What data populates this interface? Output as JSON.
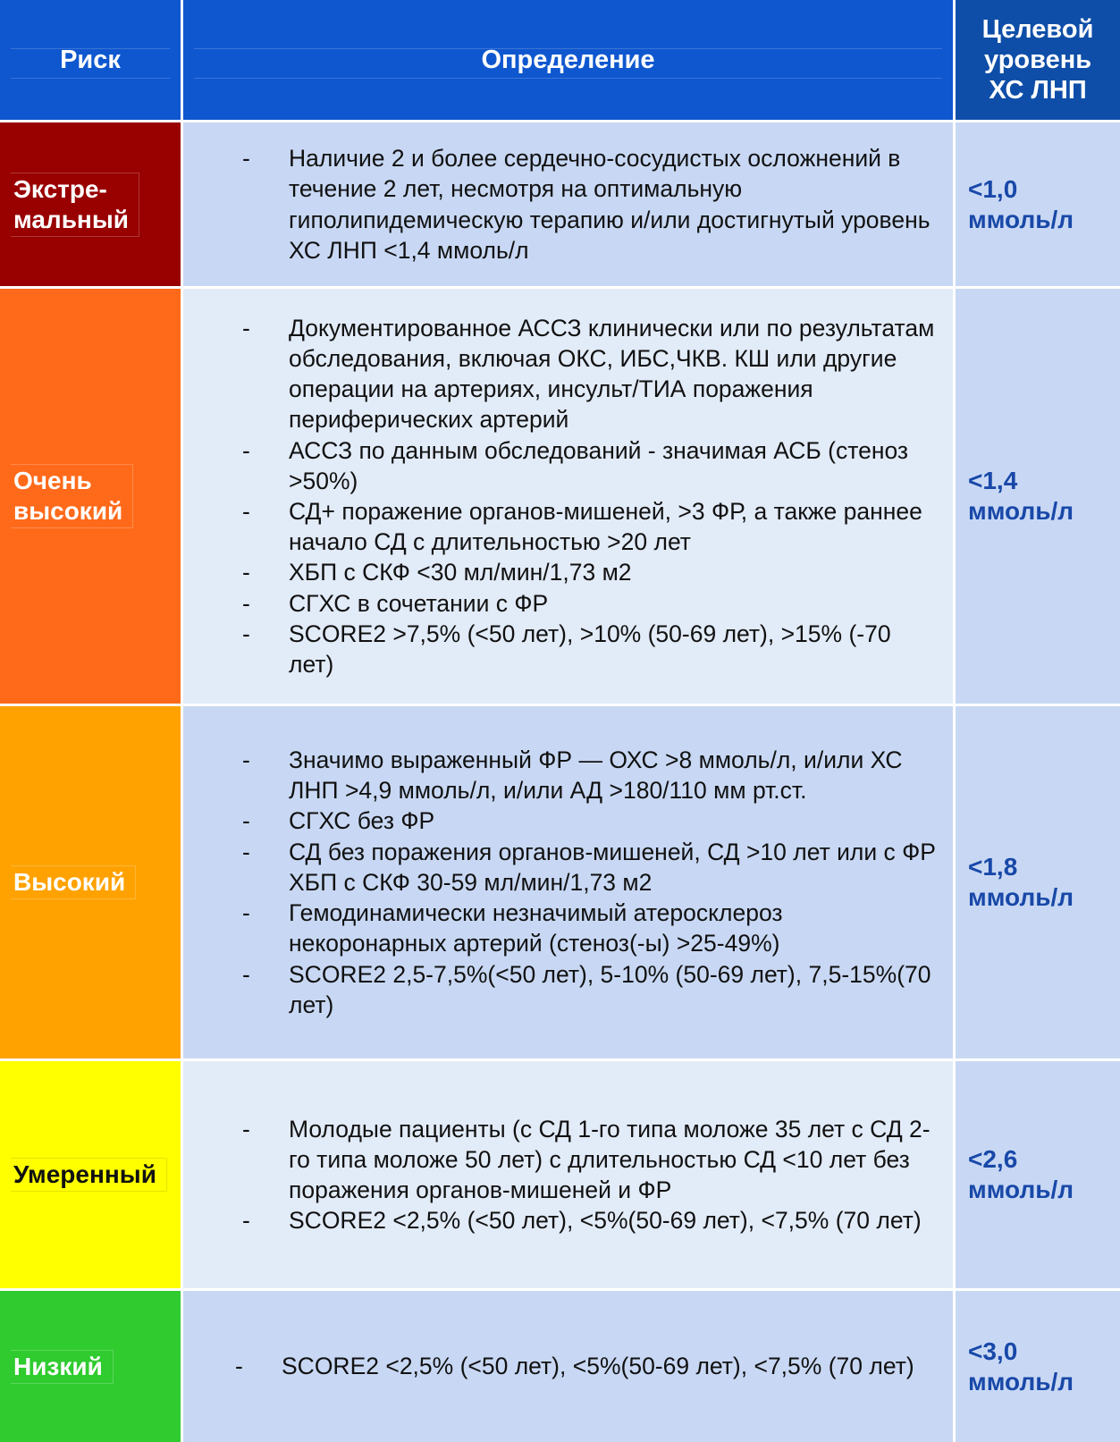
{
  "header": {
    "risk": "Риск",
    "definition": "Определение",
    "target": "Целевой\nуровень\nХС ЛНП"
  },
  "rows": [
    {
      "risk": "Экстре-\nмальный",
      "items": [
        "Наличие 2 и более сердечно-сосудистых осложнений в течение 2 лет, несмотря на оптимальную гиполипидемическую терапию и/или достигнутый уровень ХС ЛНП <1,4 ммоль/л"
      ],
      "target": "<1,0\nммоль/л"
    },
    {
      "risk": "Очень\nвысокий",
      "items": [
        "Документированное АССЗ клинически или по результатам обследования, включая ОКС, ИБС,ЧКВ. КШ или другие операции на артериях, инсульт/ТИА поражения периферических артерий",
        "АССЗ по данным обследований - значимая АСБ (стеноз >50%)",
        "СД+ поражение органов-мишеней, >3 ФР, а также раннее начало СД с длительностью >20 лет",
        "ХБП с СКФ <30 мл/мин/1,73 м2",
        "СГХС в сочетании с ФР",
        "SCORE2 >7,5% (<50 лет), >10% (50-69 лет), >15% (-70 лет)"
      ],
      "target": "<1,4\nммоль/л"
    },
    {
      "risk": "Высокий",
      "items": [
        "Значимо выраженный ФР — ОХС >8 ммоль/л, и/или ХС ЛНП >4,9 ммоль/л, и/или АД >180/110 мм рт.ст.",
        "СГХС без ФР",
        "СД без поражения органов-мишеней, СД >10 лет или с ФР ХБП с СКФ 30-59 мл/мин/1,73 м2",
        "Гемодинамически незначимый атеросклероз некоронарных артерий (стеноз(-ы) >25-49%)",
        "SCORE2 2,5-7,5%(<50 лет), 5-10% (50-69 лет), 7,5-15%(70 лет)"
      ],
      "target": "<1,8\nммоль/л"
    },
    {
      "risk": "Умеренный",
      "items": [
        "Молодые пациенты (с СД 1-го типа моложе 35 лет с СД 2-го типа моложе 50 лет) с длительностью СД <10 лет без поражения органов-мишеней и ФР",
        "SCORE2 <2,5% (<50 лет), <5%(50-69 лет), <7,5% (70 лет)"
      ],
      "target": "<2,6\nммоль/л"
    },
    {
      "risk": "Низкий",
      "items": [
        "SCORE2 <2,5% (<50 лет), <5%(50-69 лет), <7,5% (70 лет)"
      ],
      "target": "<3,0\nммоль/л"
    }
  ]
}
